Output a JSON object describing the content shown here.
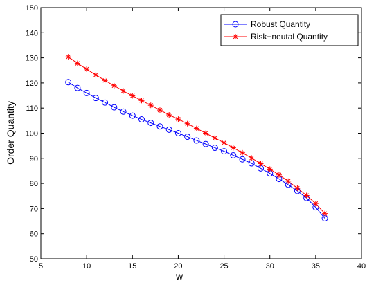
{
  "chart_data": {
    "type": "line",
    "title": "",
    "xlabel": "w",
    "ylabel": "Order Quantity",
    "xlim": [
      5,
      40
    ],
    "ylim": [
      50,
      150
    ],
    "xticks": [
      5,
      10,
      15,
      20,
      25,
      30,
      35,
      40
    ],
    "yticks": [
      50,
      60,
      70,
      80,
      90,
      100,
      110,
      120,
      130,
      140,
      150
    ],
    "grid": false,
    "legend_position": "top-right",
    "x": [
      8,
      9,
      10,
      11,
      12,
      13,
      14,
      15,
      16,
      17,
      18,
      19,
      20,
      21,
      22,
      23,
      24,
      25,
      26,
      27,
      28,
      29,
      30,
      31,
      32,
      33,
      34,
      35,
      36
    ],
    "series": [
      {
        "name": "Robust Quantity",
        "color": "#0000ff",
        "marker": "circle",
        "values": [
          120.3,
          118.0,
          116.0,
          114.0,
          112.2,
          110.3,
          108.6,
          107.0,
          105.5,
          104.1,
          102.7,
          101.4,
          100.0,
          98.6,
          97.1,
          95.7,
          94.2,
          92.8,
          91.2,
          89.6,
          88.0,
          86.0,
          84.0,
          81.8,
          79.5,
          77.0,
          74.2,
          70.5,
          66.1
        ]
      },
      {
        "name": "Risk−neutal Quantity",
        "color": "#ff0000",
        "marker": "asterisk",
        "values": [
          130.4,
          127.8,
          125.5,
          123.2,
          121.0,
          118.9,
          116.8,
          114.9,
          113.0,
          111.1,
          109.2,
          107.3,
          105.6,
          103.8,
          101.9,
          100.0,
          98.1,
          96.2,
          94.2,
          92.2,
          90.1,
          87.9,
          85.7,
          83.4,
          80.9,
          78.1,
          75.2,
          72.0,
          68.0
        ]
      }
    ]
  }
}
